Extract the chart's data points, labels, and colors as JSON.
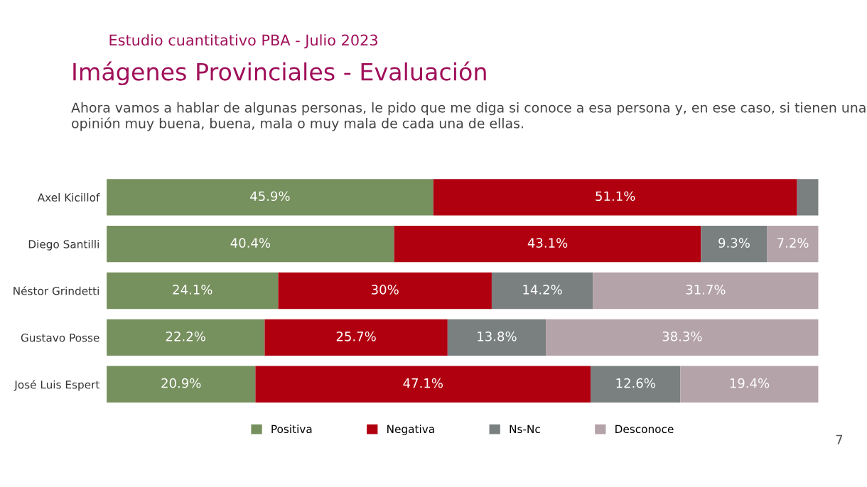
{
  "chart_data": {
    "type": "bar",
    "orientation": "horizontal",
    "stacked": true,
    "title": "Imágenes Provinciales - Evaluación",
    "subtitle": "Ahora vamos a hablar de algunas personas, le pido que me diga si conoce a esa persona y, en ese caso, si tienen una opinión muy buena, buena, mala o muy mala de cada una de ellas.",
    "annotations": [
      "Estudio cuantitativo PBA - Julio 2023",
      "7"
    ],
    "categories": [
      "Axel Kicillof",
      "Diego Santilli",
      "Néstor Grindetti",
      "Gustavo Posse",
      "José Luis Espert"
    ],
    "xlim": [
      0,
      100
    ],
    "series": [
      {
        "name": "Positiva",
        "color": "#76905e",
        "values": [
          45.9,
          40.4,
          24.1,
          22.2,
          20.9
        ],
        "value_labels": [
          "45.9%",
          "40.4%",
          "24.1%",
          "22.2%",
          "20.9%"
        ]
      },
      {
        "name": "Negativa",
        "color": "#b00010",
        "values": [
          51.1,
          43.1,
          30,
          25.7,
          47.1
        ],
        "value_labels": [
          "51.1%",
          "43.1%",
          "30%",
          "25.7%",
          "47.1%"
        ]
      },
      {
        "name": "Ns-Nc",
        "color": "#7a7f80",
        "values": [
          3.0,
          9.3,
          14.2,
          13.8,
          12.6
        ],
        "value_labels": [
          null,
          "9.3%",
          "14.2%",
          "13.8%",
          "12.6%"
        ]
      },
      {
        "name": "Desconoce",
        "color": "#b4a3a8",
        "values": [
          null,
          7.2,
          31.7,
          38.3,
          19.4
        ],
        "value_labels": [
          null,
          "7.2%",
          "31.7%",
          "38.3%",
          "19.4%"
        ]
      }
    ],
    "legend": "bottom",
    "grid": false,
    "tick_labels": "y"
  }
}
